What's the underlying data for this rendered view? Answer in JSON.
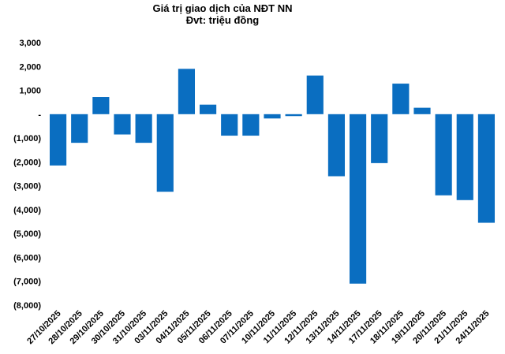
{
  "chart_data": {
    "type": "bar",
    "title": "Giá trị giao dịch của NĐT NN",
    "subtitle": "Đvt: triệu đồng",
    "xlabel": "",
    "ylabel": "",
    "categories": [
      "27/10/2025",
      "28/10/2025",
      "29/10/2025",
      "30/10/2025",
      "31/10/2025",
      "03/11/2025",
      "04/11/2025",
      "05/11/2025",
      "06/11/2025",
      "07/11/2025",
      "10/11/2025",
      "11/11/2025",
      "12/11/2025",
      "13/11/2025",
      "14/11/2025",
      "17/11/2025",
      "18/11/2025",
      "19/11/2025",
      "20/11/2025",
      "21/11/2025",
      "24/11/2025"
    ],
    "values": [
      -2150,
      -1200,
      720,
      -850,
      -1200,
      -3250,
      1900,
      400,
      -900,
      -900,
      -180,
      -80,
      1620,
      -2600,
      -7100,
      -2050,
      1280,
      270,
      -3400,
      -3600,
      -4550
    ],
    "ylim": [
      -8000,
      3000
    ],
    "yticks": [
      3000,
      2000,
      1000,
      0,
      -1000,
      -2000,
      -3000,
      -4000,
      -5000,
      -6000,
      -7000,
      -8000
    ],
    "ytick_labels": [
      "3,000",
      "2,000",
      "1,000",
      "-",
      "(1,000)",
      "(2,000)",
      "(3,000)",
      "(4,000)",
      "(5,000)",
      "(6,000)",
      "(7,000)",
      "(8,000)"
    ],
    "bar_color": "#0a6ec1",
    "grid": false,
    "legend": "none"
  }
}
